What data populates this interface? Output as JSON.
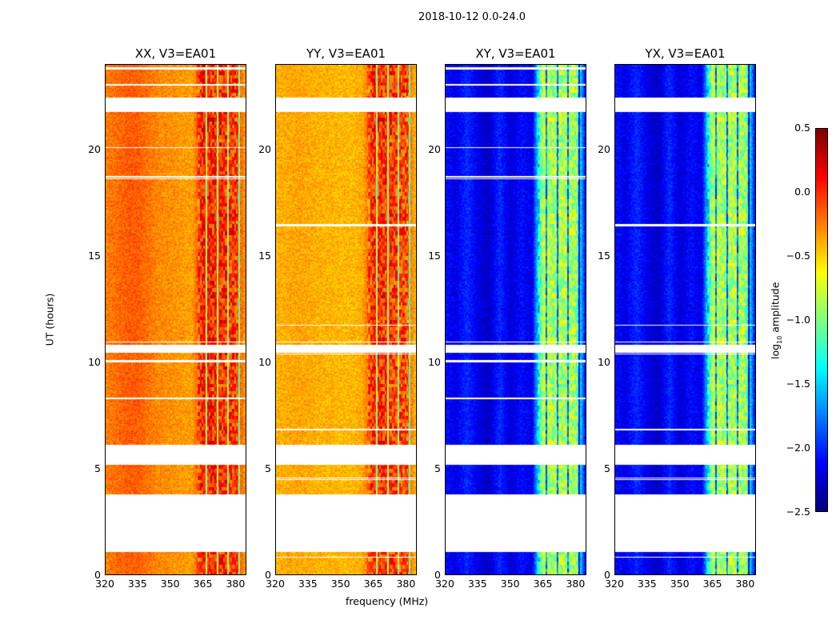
{
  "chart_data": {
    "type": "heatmap",
    "title": "2018-10-12 0.0-24.0",
    "xlabel": "frequency (MHz)",
    "ylabel": "UT (hours)",
    "xlim": [
      320,
      385
    ],
    "ylim": [
      0,
      24
    ],
    "xticks": [
      "320",
      "335",
      "350",
      "365",
      "380"
    ],
    "xtick_values": [
      320,
      335,
      350,
      365,
      380
    ],
    "yticks": [
      "0",
      "5",
      "10",
      "15",
      "20"
    ],
    "ytick_values": [
      0,
      5,
      10,
      15,
      20
    ],
    "colorbar": {
      "label": "log10 amplitude",
      "label_main": "log",
      "label_sub": "10",
      "label_rest": " amplitude",
      "colormap": "jet",
      "range": [
        -2.5,
        0.5
      ],
      "ticks": [
        "0.5",
        "0.0",
        "−0.5",
        "−1.0",
        "−1.5",
        "−2.0",
        "−2.5"
      ],
      "tick_values": [
        0.5,
        0.0,
        -0.5,
        -1.0,
        -1.5,
        -2.0,
        -2.5
      ]
    },
    "flagged_time_ranges_hours": [
      [
        1.1,
        3.8
      ],
      [
        5.2,
        6.15
      ],
      [
        10.47,
        10.84
      ],
      [
        21.76,
        22.44
      ]
    ],
    "channel_frequencies_mhz": [
      320,
      325,
      330,
      335,
      340,
      345,
      350,
      355,
      360,
      365,
      370,
      375,
      380,
      385
    ],
    "panels": [
      {
        "title": "XX, V3=EA01",
        "mean_log_amplitude": [
          -0.25,
          -0.2,
          -0.15,
          -0.15,
          -0.22,
          -0.28,
          -0.3,
          -0.33,
          -0.35,
          0.05,
          0.02,
          0.0,
          -0.05,
          -0.35
        ]
      },
      {
        "title": "YY, V3=EA01",
        "mean_log_amplitude": [
          -0.4,
          -0.38,
          -0.36,
          -0.38,
          -0.4,
          -0.4,
          -0.42,
          -0.42,
          -0.38,
          0.0,
          -0.02,
          -0.05,
          -0.1,
          -0.45
        ]
      },
      {
        "title": "XY, V3=EA01",
        "mean_log_amplitude": [
          -2.1,
          -2.2,
          -2.0,
          -2.2,
          -2.3,
          -2.0,
          -2.25,
          -2.1,
          -2.2,
          -0.8,
          -0.9,
          -0.85,
          -0.9,
          -2.3
        ]
      },
      {
        "title": "YX, V3=EA01",
        "mean_log_amplitude": [
          -2.1,
          -2.2,
          -2.0,
          -2.2,
          -2.3,
          -2.0,
          -2.25,
          -2.1,
          -2.2,
          -0.8,
          -0.9,
          -0.85,
          -0.9,
          -2.3
        ]
      }
    ]
  }
}
